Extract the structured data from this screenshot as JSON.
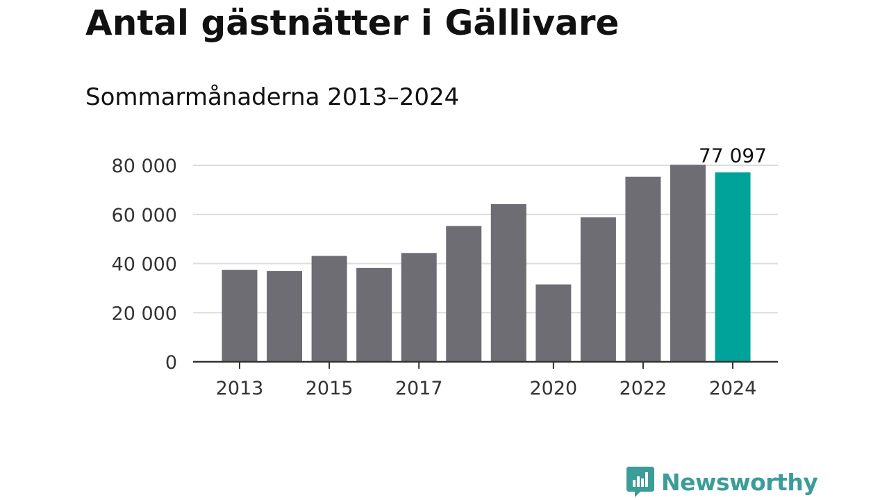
{
  "header": {
    "title": "Antal gästnätter i Gällivare",
    "subtitle": "Sommarmånaderna 2013–2024"
  },
  "brand": {
    "name": "Newsworthy",
    "icon": "bar-chart-speech-bubble-icon",
    "color": "#3b9c98"
  },
  "chart_data": {
    "type": "bar",
    "categories": [
      "2013",
      "2014",
      "2015",
      "2016",
      "2017",
      "2018",
      "2019",
      "2020",
      "2021",
      "2022",
      "2023",
      "2024"
    ],
    "values": [
      37400,
      37000,
      43100,
      38200,
      44300,
      55300,
      64200,
      31500,
      58800,
      75300,
      80200,
      77097
    ],
    "xtick_labels": [
      "2013",
      "2015",
      "2017",
      "2020",
      "2022",
      "2024"
    ],
    "ylim": [
      0,
      80000
    ],
    "yticks": [
      0,
      20000,
      40000,
      60000,
      80000
    ],
    "ytick_labels": [
      "0",
      "20 000",
      "40 000",
      "60 000",
      "80 000"
    ],
    "data_labels": [
      {
        "category": "2024",
        "text": "77 097"
      }
    ],
    "colors": {
      "bar": "#6e6d73",
      "highlight": "#00a39a",
      "grid": "#dddddd",
      "axis": "#333333"
    },
    "highlight_category": "2024",
    "grid": true,
    "legend": "none"
  }
}
